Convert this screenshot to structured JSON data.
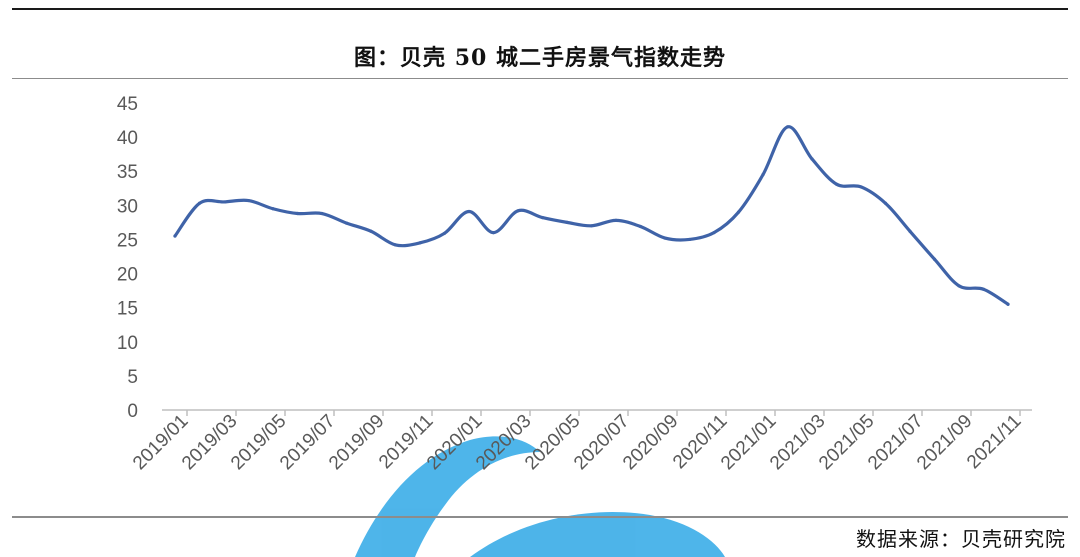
{
  "header": {
    "title": "图：贝壳 50 城二手房景气指数走势"
  },
  "footer": {
    "source": "数据来源：贝壳研究院"
  },
  "colors": {
    "line": "#3f63a8",
    "axis": "#bfbfbf",
    "tick_text": "#595959",
    "watermark": "#2fa8e6"
  },
  "chart_data": {
    "type": "line",
    "title": "图：贝壳 50 城二手房景气指数走势",
    "xlabel": "",
    "ylabel": "",
    "ylim": [
      0,
      45
    ],
    "yticks": [
      0,
      5,
      10,
      15,
      20,
      25,
      30,
      35,
      40,
      45
    ],
    "grid": false,
    "legend": "none",
    "categories": [
      "2019/01",
      "2019/02",
      "2019/03",
      "2019/04",
      "2019/05",
      "2019/06",
      "2019/07",
      "2019/08",
      "2019/09",
      "2019/10",
      "2019/11",
      "2019/12",
      "2020/01",
      "2020/02",
      "2020/03",
      "2020/04",
      "2020/05",
      "2020/06",
      "2020/07",
      "2020/08",
      "2020/09",
      "2020/10",
      "2020/11",
      "2020/12",
      "2021/01",
      "2021/02",
      "2021/03",
      "2021/04",
      "2021/05",
      "2021/06",
      "2021/07",
      "2021/08",
      "2021/09",
      "2021/10",
      "2021/11"
    ],
    "xtick_labels": [
      "2019/01",
      "2019/03",
      "2019/05",
      "2019/07",
      "2019/09",
      "2019/11",
      "2020/01",
      "2020/03",
      "2020/05",
      "2020/07",
      "2020/09",
      "2020/11",
      "2021/01",
      "2021/03",
      "2021/05",
      "2021/07",
      "2021/09",
      "2021/11"
    ],
    "series": [
      {
        "values": [
          25.5,
          30.3,
          30.5,
          30.7,
          29.5,
          28.8,
          28.8,
          27.4,
          26.2,
          24.2,
          24.5,
          25.9,
          29.1,
          26.0,
          29.2,
          28.2,
          27.5,
          27.0,
          27.8,
          26.9,
          25.2,
          25.0,
          26.0,
          29.0,
          34.5,
          41.5,
          36.8,
          33.1,
          32.7,
          30.3,
          26.2,
          22.1,
          18.2,
          17.7,
          15.5
        ]
      }
    ]
  }
}
